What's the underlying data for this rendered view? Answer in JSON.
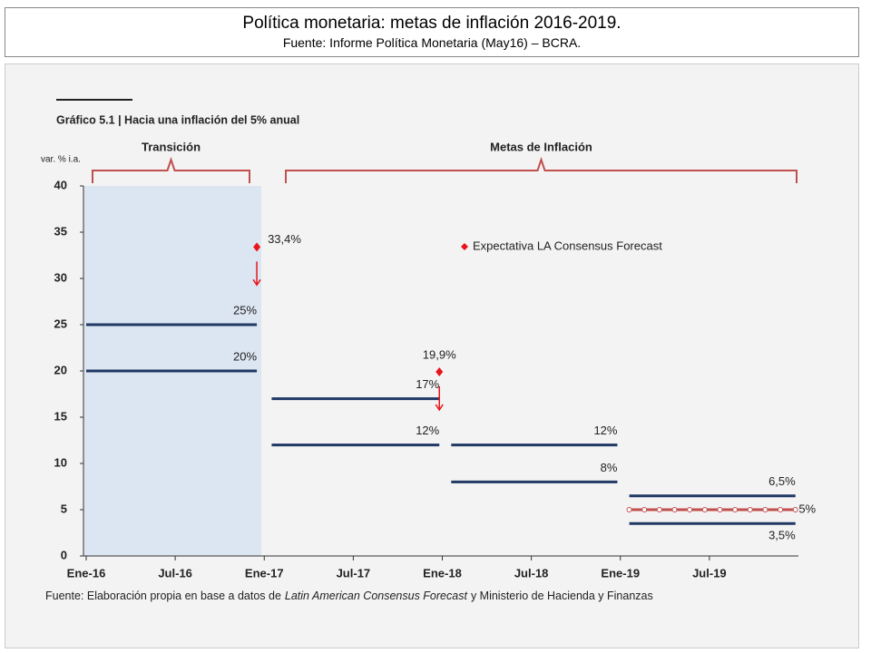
{
  "header": {
    "title": "Política monetaria: metas de inflación 2016-2019.",
    "subtitle": "Fuente: Informe Política Monetaria (May16) – BCRA."
  },
  "chart_data": {
    "type": "segments",
    "title": "Gráfico 5.1 | Hacia una inflación del 5% anual",
    "y_label": "var. % i.a.",
    "brackets": [
      {
        "label": "Transición"
      },
      {
        "label": "Metas de Inflación"
      }
    ],
    "xlim": [
      0,
      48
    ],
    "ylim": [
      0,
      40
    ],
    "xticks": [
      {
        "value": 0,
        "label": "Ene-16"
      },
      {
        "value": 6,
        "label": "Jul-16"
      },
      {
        "value": 12,
        "label": "Ene-17"
      },
      {
        "value": 18,
        "label": "Jul-17"
      },
      {
        "value": 24,
        "label": "Ene-18"
      },
      {
        "value": 30,
        "label": "Jul-18"
      },
      {
        "value": 36,
        "label": "Ene-19"
      },
      {
        "value": 42,
        "label": "Jul-19"
      }
    ],
    "yticks": [
      0,
      5,
      10,
      15,
      20,
      25,
      30,
      35,
      40
    ],
    "segments": [
      {
        "x": [
          0,
          11.5
        ],
        "value": 25,
        "label": "25%",
        "color": "#1f3864"
      },
      {
        "x": [
          0,
          11.5
        ],
        "value": 20,
        "label": "20%",
        "color": "#1f3864"
      },
      {
        "x": [
          12.5,
          23.8
        ],
        "value": 17,
        "label": "17%",
        "color": "#1f3864"
      },
      {
        "x": [
          12.5,
          23.8
        ],
        "value": 12,
        "label": "12%",
        "color": "#1f3864"
      },
      {
        "x": [
          24.6,
          35.8
        ],
        "value": 12,
        "label": "12%",
        "color": "#1f3864"
      },
      {
        "x": [
          24.6,
          35.8
        ],
        "value": 8,
        "label": "8%",
        "color": "#1f3864"
      },
      {
        "x": [
          36.6,
          47.8
        ],
        "value": 6.5,
        "label": "6,5%",
        "color": "#1f3864"
      },
      {
        "x": [
          36.6,
          47.8
        ],
        "value": 5,
        "label": "5%",
        "color": "#c0504d",
        "markers": true
      },
      {
        "x": [
          36.6,
          47.8
        ],
        "value": 3.5,
        "label": "3,5%",
        "color": "#1f3864"
      }
    ],
    "expectations": {
      "name": "Expectativa LA Consensus Forecast",
      "color": "#e8141b",
      "x": [
        11.5,
        23.8
      ],
      "values": [
        33.4,
        19.9
      ],
      "value_labels": [
        "33,4%",
        "19,9%"
      ]
    },
    "source": [
      "Fuente: Elaboración propia en base a datos de",
      "Latin American Consensus Forecast",
      "y Ministerio de Hacienda y Finanzas"
    ]
  }
}
